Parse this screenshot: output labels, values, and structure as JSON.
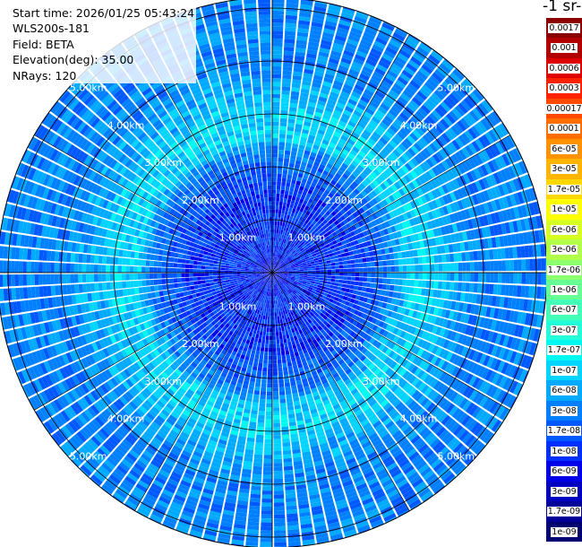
{
  "header": {
    "start_time": "Start time: 2026/01/25 05:43:24",
    "instrument": "WLS200s-181",
    "field": "Field: BETA",
    "elevation": "Elevation(deg): 35.00",
    "nrays": "NRays: 120"
  },
  "colorbar": {
    "unit_title": "-1 sr-",
    "levels": [
      {
        "label": "0.0017",
        "color": "#8b0000"
      },
      {
        "label": "0.001",
        "color": "#b20000"
      },
      {
        "label": "0.0006",
        "color": "#dc0000"
      },
      {
        "label": "0.0003",
        "color": "#ff2200"
      },
      {
        "label": "0.00017",
        "color": "#ff4a00"
      },
      {
        "label": "0.0001",
        "color": "#ff6e00"
      },
      {
        "label": "6e-05",
        "color": "#ff9200"
      },
      {
        "label": "3e-05",
        "color": "#ffb400"
      },
      {
        "label": "1.7e-05",
        "color": "#ffd800"
      },
      {
        "label": "1e-05",
        "color": "#ffff00"
      },
      {
        "label": "6e-06",
        "color": "#d8ff22"
      },
      {
        "label": "3e-06",
        "color": "#b2ff4a"
      },
      {
        "label": "1.7e-06",
        "color": "#8cff70"
      },
      {
        "label": "1e-06",
        "color": "#66ff94"
      },
      {
        "label": "6e-07",
        "color": "#44ffb8"
      },
      {
        "label": "3e-07",
        "color": "#22ffd8"
      },
      {
        "label": "1.7e-07",
        "color": "#00f8f0"
      },
      {
        "label": "1e-07",
        "color": "#00d4ff"
      },
      {
        "label": "6e-08",
        "color": "#00aaff"
      },
      {
        "label": "3e-08",
        "color": "#0080ff"
      },
      {
        "label": "1.7e-08",
        "color": "#0058ff"
      },
      {
        "label": "1e-08",
        "color": "#0030ff"
      },
      {
        "label": "6e-09",
        "color": "#0000e8"
      },
      {
        "label": "3e-09",
        "color": "#0000c0"
      },
      {
        "label": "1.7e-09",
        "color": "#000098"
      },
      {
        "label": "1e-09",
        "color": "#000070"
      }
    ]
  },
  "chart_data": {
    "type": "heatmap",
    "plot_kind": "PPI (polar plan position indicator)",
    "rings_km": [
      1,
      2,
      3,
      4,
      5
    ],
    "ring_labels": [
      "1.00km",
      "2.00km",
      "3.00km",
      "4.00km",
      "5.00km"
    ],
    "spoke_angles_deg": [
      0,
      30,
      60,
      90,
      120,
      150,
      180,
      210,
      240,
      270,
      300,
      330
    ],
    "max_range_km": 5.2,
    "radial_profile": {
      "range_km": [
        0.0,
        0.5,
        1.0,
        1.5,
        2.0,
        2.3,
        2.6,
        3.0,
        3.5,
        4.0,
        5.2
      ],
      "level_index": [
        22,
        21,
        21,
        21,
        20,
        19,
        17,
        17,
        18,
        19,
        19
      ]
    },
    "color_scale": "log",
    "grid": true
  }
}
